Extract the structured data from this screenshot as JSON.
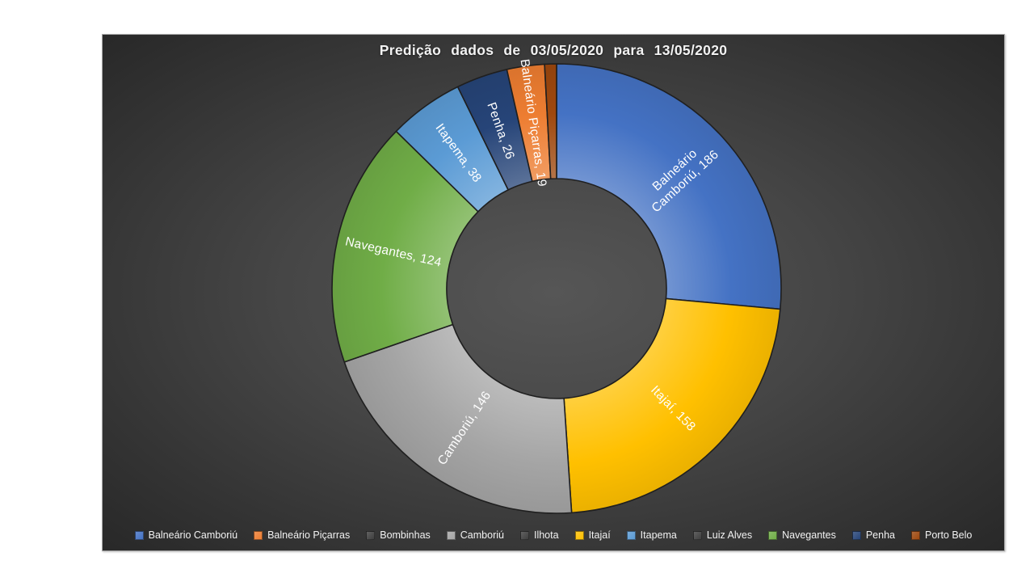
{
  "chart": {
    "title": "Predição dados de 03/05/2020 para 13/05/2020",
    "title_color": "#f2f2f2",
    "background_center": "#565656",
    "background_edge": "#252525",
    "frame_border_color": "#a6a6a6",
    "slice_outline_color": "#1f1f1f",
    "slice_label_color": "#ffffff"
  },
  "chart_data": {
    "type": "pie",
    "subtype": "donut",
    "title": "Predição dados de 03/05/2020 para 13/05/2020",
    "direction": "clockwise",
    "start_angle_deg": 0,
    "hole_ratio": 0.49,
    "legend_position": "bottom",
    "slices": [
      {
        "name": "Balneário Camboriú",
        "value": 186,
        "color": "#4472C4",
        "label_lines": [
          "Balneário",
          "Camboriú, 186"
        ]
      },
      {
        "name": "Itajaí",
        "value": 158,
        "color": "#FFC000",
        "label_lines": [
          "Itajaí, 158"
        ]
      },
      {
        "name": "Camboriú",
        "value": 146,
        "color": "#A5A5A5",
        "label_lines": [
          "Camboriú, 146"
        ]
      },
      {
        "name": "Navegantes",
        "value": 124,
        "color": "#70AD47",
        "label_lines": [
          "Navegantes, 124"
        ]
      },
      {
        "name": "Itapema",
        "value": 38,
        "color": "#5B9BD5",
        "label_lines": [
          "Itapema, 38"
        ]
      },
      {
        "name": "Penha",
        "value": 26,
        "color": "#264478",
        "label_lines": [
          "Penha, 26"
        ]
      },
      {
        "name": "Balneário Piçarras",
        "value": 19,
        "color": "#ED7D31",
        "label_lines": [
          "Balneário Piçarras, 19"
        ]
      },
      {
        "name": "Porto Belo",
        "value": 6,
        "value_estimated": true,
        "color": "#9E480E",
        "label_lines": []
      }
    ],
    "legend": [
      {
        "label": "Balneário Camboriú",
        "color": "#4472C4"
      },
      {
        "label": "Balneário Piçarras",
        "color": "#ED7D31"
      },
      {
        "label": "Bombinhas",
        "color": "#3f3f3f"
      },
      {
        "label": "Camboriú",
        "color": "#A5A5A5"
      },
      {
        "label": "Ilhota",
        "color": "#3f3f3f"
      },
      {
        "label": "Itajaí",
        "color": "#FFC000"
      },
      {
        "label": "Itapema",
        "color": "#5B9BD5"
      },
      {
        "label": "Luiz Alves",
        "color": "#3f3f3f"
      },
      {
        "label": "Navegantes",
        "color": "#70AD47"
      },
      {
        "label": "Penha",
        "color": "#264478"
      },
      {
        "label": "Porto Belo",
        "color": "#9E480E"
      }
    ]
  }
}
